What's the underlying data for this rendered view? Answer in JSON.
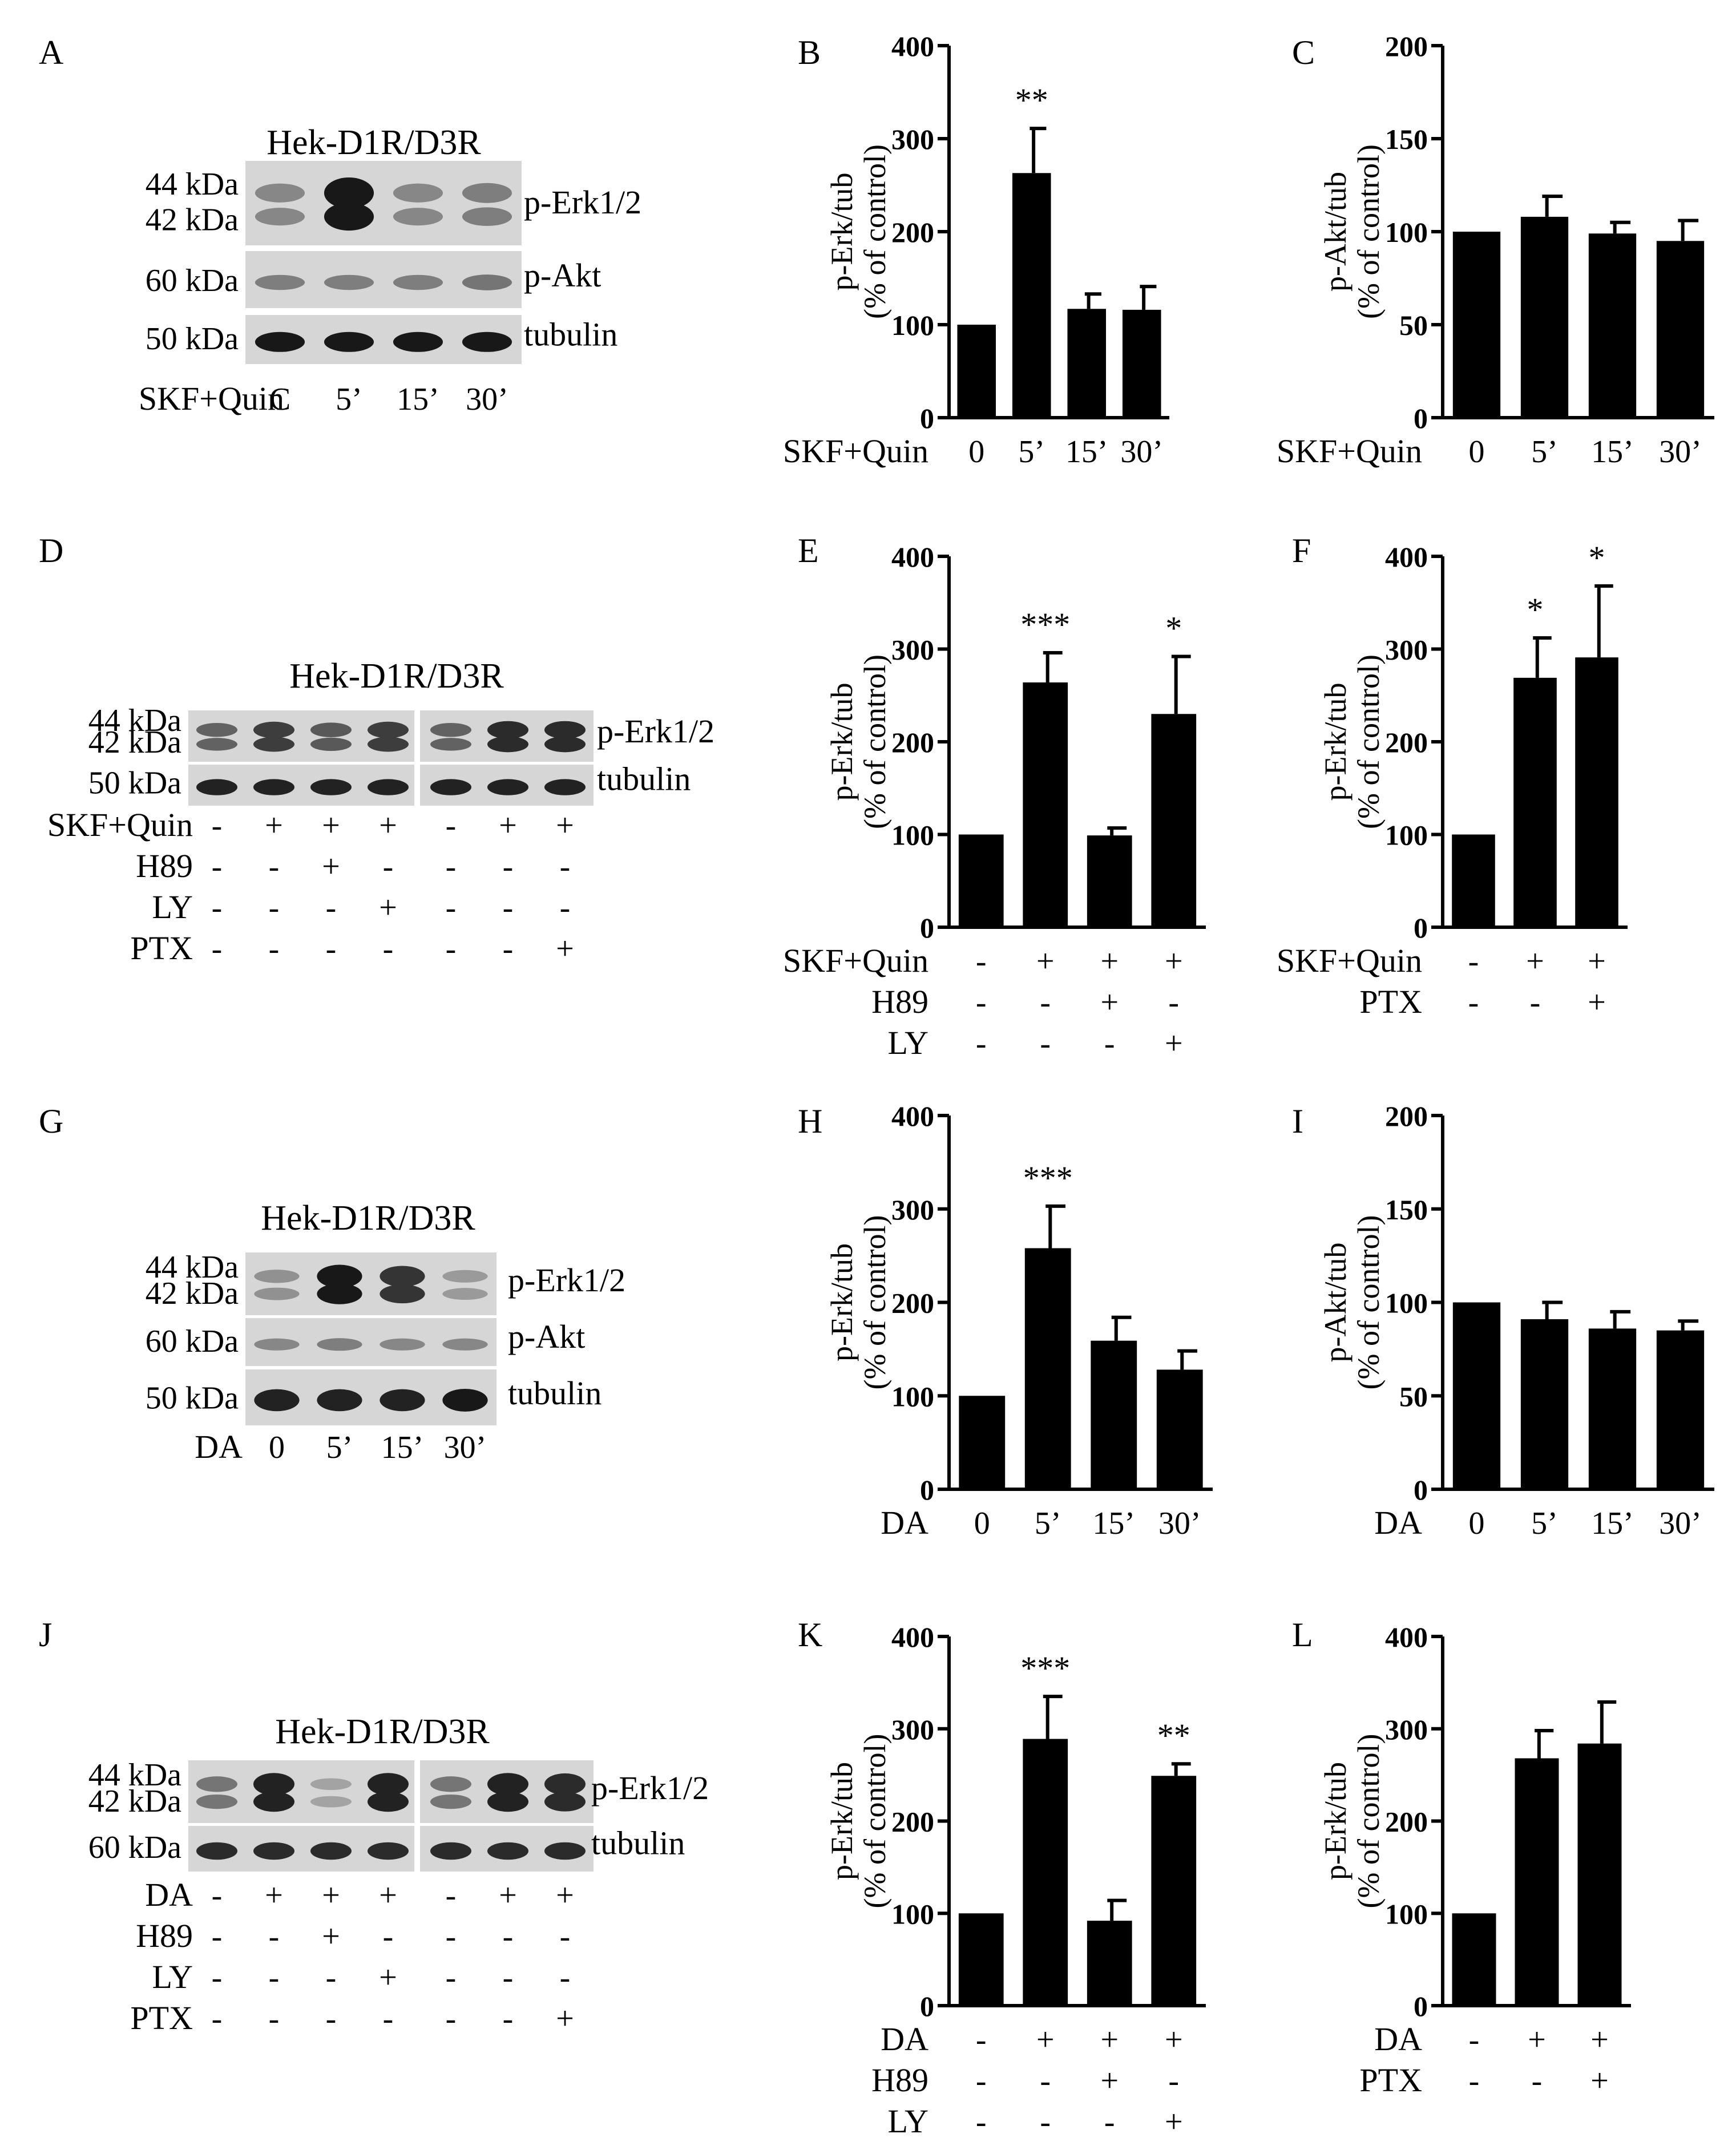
{
  "figure": {
    "background": "#ffffff",
    "ink": "#000000",
    "blots": [
      {
        "panel": "A",
        "title": "Hek-D1R/D3R",
        "rows": [
          {
            "kda": [
              "44 kDa",
              "42 kDa"
            ],
            "label": "p-Erk1/2",
            "band": "double",
            "intensity": [
              0.35,
              0.95,
              0.35,
              0.4
            ]
          },
          {
            "kda": [
              "60 kDa"
            ],
            "label": "p-Akt",
            "band": "single",
            "intensity": [
              0.4,
              0.4,
              0.4,
              0.45
            ]
          },
          {
            "kda": [
              "50 kDa"
            ],
            "label": "tubulin",
            "band": "single",
            "intensity": [
              0.95,
              0.95,
              0.95,
              0.95
            ]
          }
        ],
        "condition_rows": [
          {
            "name": "SKF+Quin",
            "values": [
              "C",
              "5’",
              "15’",
              "30’"
            ]
          }
        ]
      },
      {
        "panel": "D",
        "title": "Hek-D1R/D3R",
        "rows": [
          {
            "kda": [
              "44 kDa",
              "42 kDa"
            ],
            "label": "p-Erk1/2",
            "band": "double",
            "intensity": [
              0.55,
              0.75,
              0.6,
              0.75,
              0.55,
              0.85,
              0.85
            ]
          },
          {
            "kda": [
              "50 kDa"
            ],
            "label": "tubulin",
            "band": "single",
            "intensity": [
              0.9,
              0.9,
              0.9,
              0.9,
              0.9,
              0.9,
              0.9
            ]
          }
        ],
        "condition_rows": [
          {
            "name": "SKF+Quin",
            "values": [
              "-",
              "+",
              "+",
              "+",
              "-",
              "+",
              "+"
            ]
          },
          {
            "name": "H89",
            "values": [
              "-",
              "-",
              "+",
              "-",
              "-",
              "-",
              "-"
            ]
          },
          {
            "name": "LY",
            "values": [
              "-",
              "-",
              "-",
              "+",
              "-",
              "-",
              "-"
            ]
          },
          {
            "name": "PTX",
            "values": [
              "-",
              "-",
              "-",
              "-",
              "-",
              "-",
              "+"
            ]
          }
        ]
      },
      {
        "panel": "G",
        "title": "Hek-D1R/D3R",
        "rows": [
          {
            "kda": [
              "44 kDa",
              "42 kDa"
            ],
            "label": "p-Erk1/2",
            "band": "double",
            "intensity": [
              0.3,
              0.95,
              0.8,
              0.25
            ]
          },
          {
            "kda": [
              "60 kDa"
            ],
            "label": "p-Akt",
            "band": "single",
            "intensity": [
              0.35,
              0.4,
              0.35,
              0.35
            ]
          },
          {
            "kda": [
              "50 kDa"
            ],
            "label": "tubulin",
            "band": "single",
            "intensity": [
              0.9,
              0.9,
              0.9,
              0.95
            ]
          }
        ],
        "condition_rows": [
          {
            "name": "DA",
            "values": [
              "0",
              "5’",
              "15’",
              "30’"
            ]
          }
        ]
      },
      {
        "panel": "J",
        "title": "Hek-D1R/D3R",
        "rows": [
          {
            "kda": [
              "44 kDa",
              "42 kDa"
            ],
            "label": "p-Erk1/2",
            "band": "double",
            "intensity": [
              0.45,
              0.9,
              0.2,
              0.9,
              0.45,
              0.9,
              0.85
            ]
          },
          {
            "kda": [
              "60 kDa"
            ],
            "label": "tubulin",
            "band": "single",
            "intensity": [
              0.85,
              0.85,
              0.85,
              0.85,
              0.85,
              0.85,
              0.85
            ]
          }
        ],
        "condition_rows": [
          {
            "name": "DA",
            "values": [
              "-",
              "+",
              "+",
              "+",
              "-",
              "+",
              "+"
            ]
          },
          {
            "name": "H89",
            "values": [
              "-",
              "-",
              "+",
              "-",
              "-",
              "-",
              "-"
            ]
          },
          {
            "name": "LY",
            "values": [
              "-",
              "-",
              "-",
              "+",
              "-",
              "-",
              "-"
            ]
          },
          {
            "name": "PTX",
            "values": [
              "-",
              "-",
              "-",
              "-",
              "-",
              "-",
              "+"
            ]
          }
        ]
      }
    ]
  },
  "chart_data": [
    {
      "panel": "B",
      "type": "bar",
      "ylabel_lines": [
        "p-Erk/tub",
        "(% of control)"
      ],
      "ylim": [
        0,
        400
      ],
      "yticks": [
        0,
        100,
        200,
        300,
        400
      ],
      "values": [
        100,
        263,
        117,
        116
      ],
      "errors": [
        0,
        48,
        16,
        25
      ],
      "significance": [
        "",
        "**",
        "",
        ""
      ],
      "condition_rows": [
        {
          "name": "SKF+Quin",
          "values": [
            "0",
            "5’",
            "15’",
            "30’"
          ]
        }
      ]
    },
    {
      "panel": "C",
      "type": "bar",
      "ylabel_lines": [
        "p-Akt/tub",
        "(% of control)"
      ],
      "ylim": [
        0,
        200
      ],
      "yticks": [
        0,
        50,
        100,
        150,
        200
      ],
      "values": [
        100,
        108,
        99,
        95
      ],
      "errors": [
        0,
        11,
        6,
        11
      ],
      "significance": [
        "",
        "",
        "",
        ""
      ],
      "condition_rows": [
        {
          "name": "SKF+Quin",
          "values": [
            "0",
            "5’",
            "15’",
            "30’"
          ]
        }
      ]
    },
    {
      "panel": "E",
      "type": "bar",
      "ylabel_lines": [
        "p-Erk/tub",
        "(% of control)"
      ],
      "ylim": [
        0,
        400
      ],
      "yticks": [
        0,
        100,
        200,
        300,
        400
      ],
      "values": [
        100,
        264,
        99,
        230
      ],
      "errors": [
        0,
        32,
        8,
        62
      ],
      "significance": [
        "",
        "***",
        "",
        "*"
      ],
      "condition_rows": [
        {
          "name": "SKF+Quin",
          "values": [
            "-",
            "+",
            "+",
            "+"
          ]
        },
        {
          "name": "H89",
          "values": [
            "-",
            "-",
            "+",
            "-"
          ]
        },
        {
          "name": "LY",
          "values": [
            "-",
            "-",
            "-",
            "+"
          ]
        }
      ]
    },
    {
      "panel": "F",
      "type": "bar",
      "ylabel_lines": [
        "p-Erk/tub",
        "(% of control)"
      ],
      "ylim": [
        0,
        400
      ],
      "yticks": [
        0,
        100,
        200,
        300,
        400
      ],
      "values": [
        100,
        269,
        291
      ],
      "errors": [
        0,
        43,
        77
      ],
      "significance": [
        "",
        "*",
        "*"
      ],
      "condition_rows": [
        {
          "name": "SKF+Quin",
          "values": [
            "-",
            "+",
            "+"
          ]
        },
        {
          "name": "PTX",
          "values": [
            "-",
            "-",
            "+"
          ]
        }
      ]
    },
    {
      "panel": "H",
      "type": "bar",
      "ylabel_lines": [
        "p-Erk/tub",
        "(% of control)"
      ],
      "ylim": [
        0,
        400
      ],
      "yticks": [
        0,
        100,
        200,
        300,
        400
      ],
      "values": [
        100,
        258,
        159,
        128
      ],
      "errors": [
        0,
        45,
        25,
        20
      ],
      "significance": [
        "",
        "***",
        "",
        ""
      ],
      "condition_rows": [
        {
          "name": "DA",
          "values": [
            "0",
            "5’",
            "15’",
            "30’"
          ]
        }
      ]
    },
    {
      "panel": "I",
      "type": "bar",
      "ylabel_lines": [
        "p-Akt/tub",
        "(% of control)"
      ],
      "ylim": [
        0,
        200
      ],
      "yticks": [
        0,
        50,
        100,
        150,
        200
      ],
      "values": [
        100,
        91,
        86,
        85
      ],
      "errors": [
        0,
        9,
        9,
        5
      ],
      "significance": [
        "",
        "",
        "",
        ""
      ],
      "condition_rows": [
        {
          "name": "DA",
          "values": [
            "0",
            "5’",
            "15’",
            "30’"
          ]
        }
      ]
    },
    {
      "panel": "K",
      "type": "bar",
      "ylabel_lines": [
        "p-Erk/tub",
        "(% of control)"
      ],
      "ylim": [
        0,
        400
      ],
      "yticks": [
        0,
        100,
        200,
        300,
        400
      ],
      "values": [
        100,
        289,
        92,
        249
      ],
      "errors": [
        0,
        46,
        22,
        13
      ],
      "significance": [
        "",
        "***",
        "",
        "**"
      ],
      "condition_rows": [
        {
          "name": "DA",
          "values": [
            "-",
            "+",
            "+",
            "+"
          ]
        },
        {
          "name": "H89",
          "values": [
            "-",
            "-",
            "+",
            "-"
          ]
        },
        {
          "name": "LY",
          "values": [
            "-",
            "-",
            "-",
            "+"
          ]
        }
      ]
    },
    {
      "panel": "L",
      "type": "bar",
      "ylabel_lines": [
        "p-Erk/tub",
        "(% of control)"
      ],
      "ylim": [
        0,
        400
      ],
      "yticks": [
        0,
        100,
        200,
        300,
        400
      ],
      "values": [
        100,
        268,
        284
      ],
      "errors": [
        0,
        30,
        45
      ],
      "significance": [
        "",
        "",
        ""
      ],
      "condition_rows": [
        {
          "name": "DA",
          "values": [
            "-",
            "+",
            "+"
          ]
        },
        {
          "name": "PTX",
          "values": [
            "-",
            "-",
            "+"
          ]
        }
      ]
    }
  ]
}
